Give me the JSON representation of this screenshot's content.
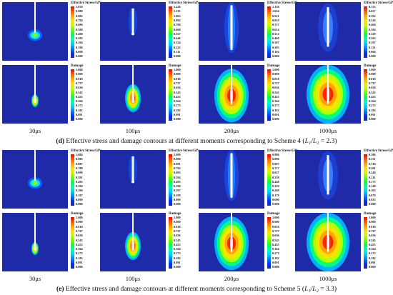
{
  "figure_d": {
    "stress_title": "Effective Stress/GPa",
    "damage_title": "Damage",
    "stress_ticks": [
      [
        "1.078",
        "0.980",
        "0.882",
        "0.784",
        "0.686",
        "0.588",
        "0.490",
        "0.392",
        "0.294",
        "0.196",
        "0.098",
        "0.000"
      ],
      [
        "1.226",
        "1.115",
        "1.003",
        "0.892",
        "0.780",
        "0.669",
        "0.557",
        "0.446",
        "0.334",
        "0.223",
        "0.111",
        "0.000"
      ],
      [
        "1.126",
        "1.024",
        "0.921",
        "0.819",
        "0.717",
        "0.614",
        "0.512",
        "0.409",
        "0.307",
        "0.205",
        "0.102",
        "0.000"
      ],
      [
        "0.723",
        "0.657",
        "0.592",
        "0.526",
        "0.460",
        "0.394",
        "0.329",
        "0.263",
        "0.197",
        "0.131",
        "0.066",
        "0.000"
      ]
    ],
    "damage_ticks": [
      "1.000",
      "0.909",
      "0.818",
      "0.727",
      "0.636",
      "0.545",
      "0.455",
      "0.364",
      "0.273",
      "0.182",
      "0.091",
      "0.000"
    ],
    "times": [
      "30μs",
      "100μs",
      "200μs",
      "1000μs"
    ],
    "caption_label": "(d)",
    "caption_text": " Effective stress and damage contours at different moments corresponding to Scheme 4 (",
    "caption_ratio": "L₁/L₂",
    "caption_value": " = 2.3)"
  },
  "figure_e": {
    "stress_title": "Effective Stress/GPa",
    "damage_title": "Damage",
    "stress_ticks": [
      [
        "1.084",
        "0.985",
        "0.887",
        "0.788",
        "0.690",
        "0.591",
        "0.493",
        "0.394",
        "0.296",
        "0.197",
        "0.099",
        "0.000"
      ],
      [
        "1.089",
        "0.990",
        "0.891",
        "0.792",
        "0.693",
        "0.594",
        "0.495",
        "0.396",
        "0.297",
        "0.198",
        "0.099",
        "0.000"
      ],
      [
        "0.986",
        "0.896",
        "0.807",
        "0.717",
        "0.627",
        "0.538",
        "0.448",
        "0.359",
        "0.269",
        "0.179",
        "0.090",
        "0.000"
      ],
      [
        "0.386",
        "0.351",
        "0.316",
        "0.281",
        "0.246",
        "0.211",
        "0.175",
        "0.140",
        "0.105",
        "0.070",
        "0.035",
        "0.000"
      ]
    ],
    "damage_ticks": [
      "1.000",
      "0.909",
      "0.818",
      "0.727",
      "0.636",
      "0.545",
      "0.455",
      "0.364",
      "0.273",
      "0.182",
      "0.091",
      "0.000"
    ],
    "times": [
      "30μs",
      "100μs",
      "200μs",
      "1000μs"
    ],
    "caption_label": "(e)",
    "caption_text": " Effective stress and damage contours at different moments corresponding to Scheme 5 (",
    "caption_ratio": "L₁/L₂",
    "caption_value": " = 3.3)"
  },
  "colors": {
    "background": "#1f2aa8",
    "scale": [
      "#ff0000",
      "#ff5a00",
      "#ffa500",
      "#ffe000",
      "#c8ff00",
      "#6bff00",
      "#00ff50",
      "#00ffc0",
      "#00d0ff",
      "#0080ff",
      "#0030ff",
      "#1f2aa8"
    ]
  }
}
